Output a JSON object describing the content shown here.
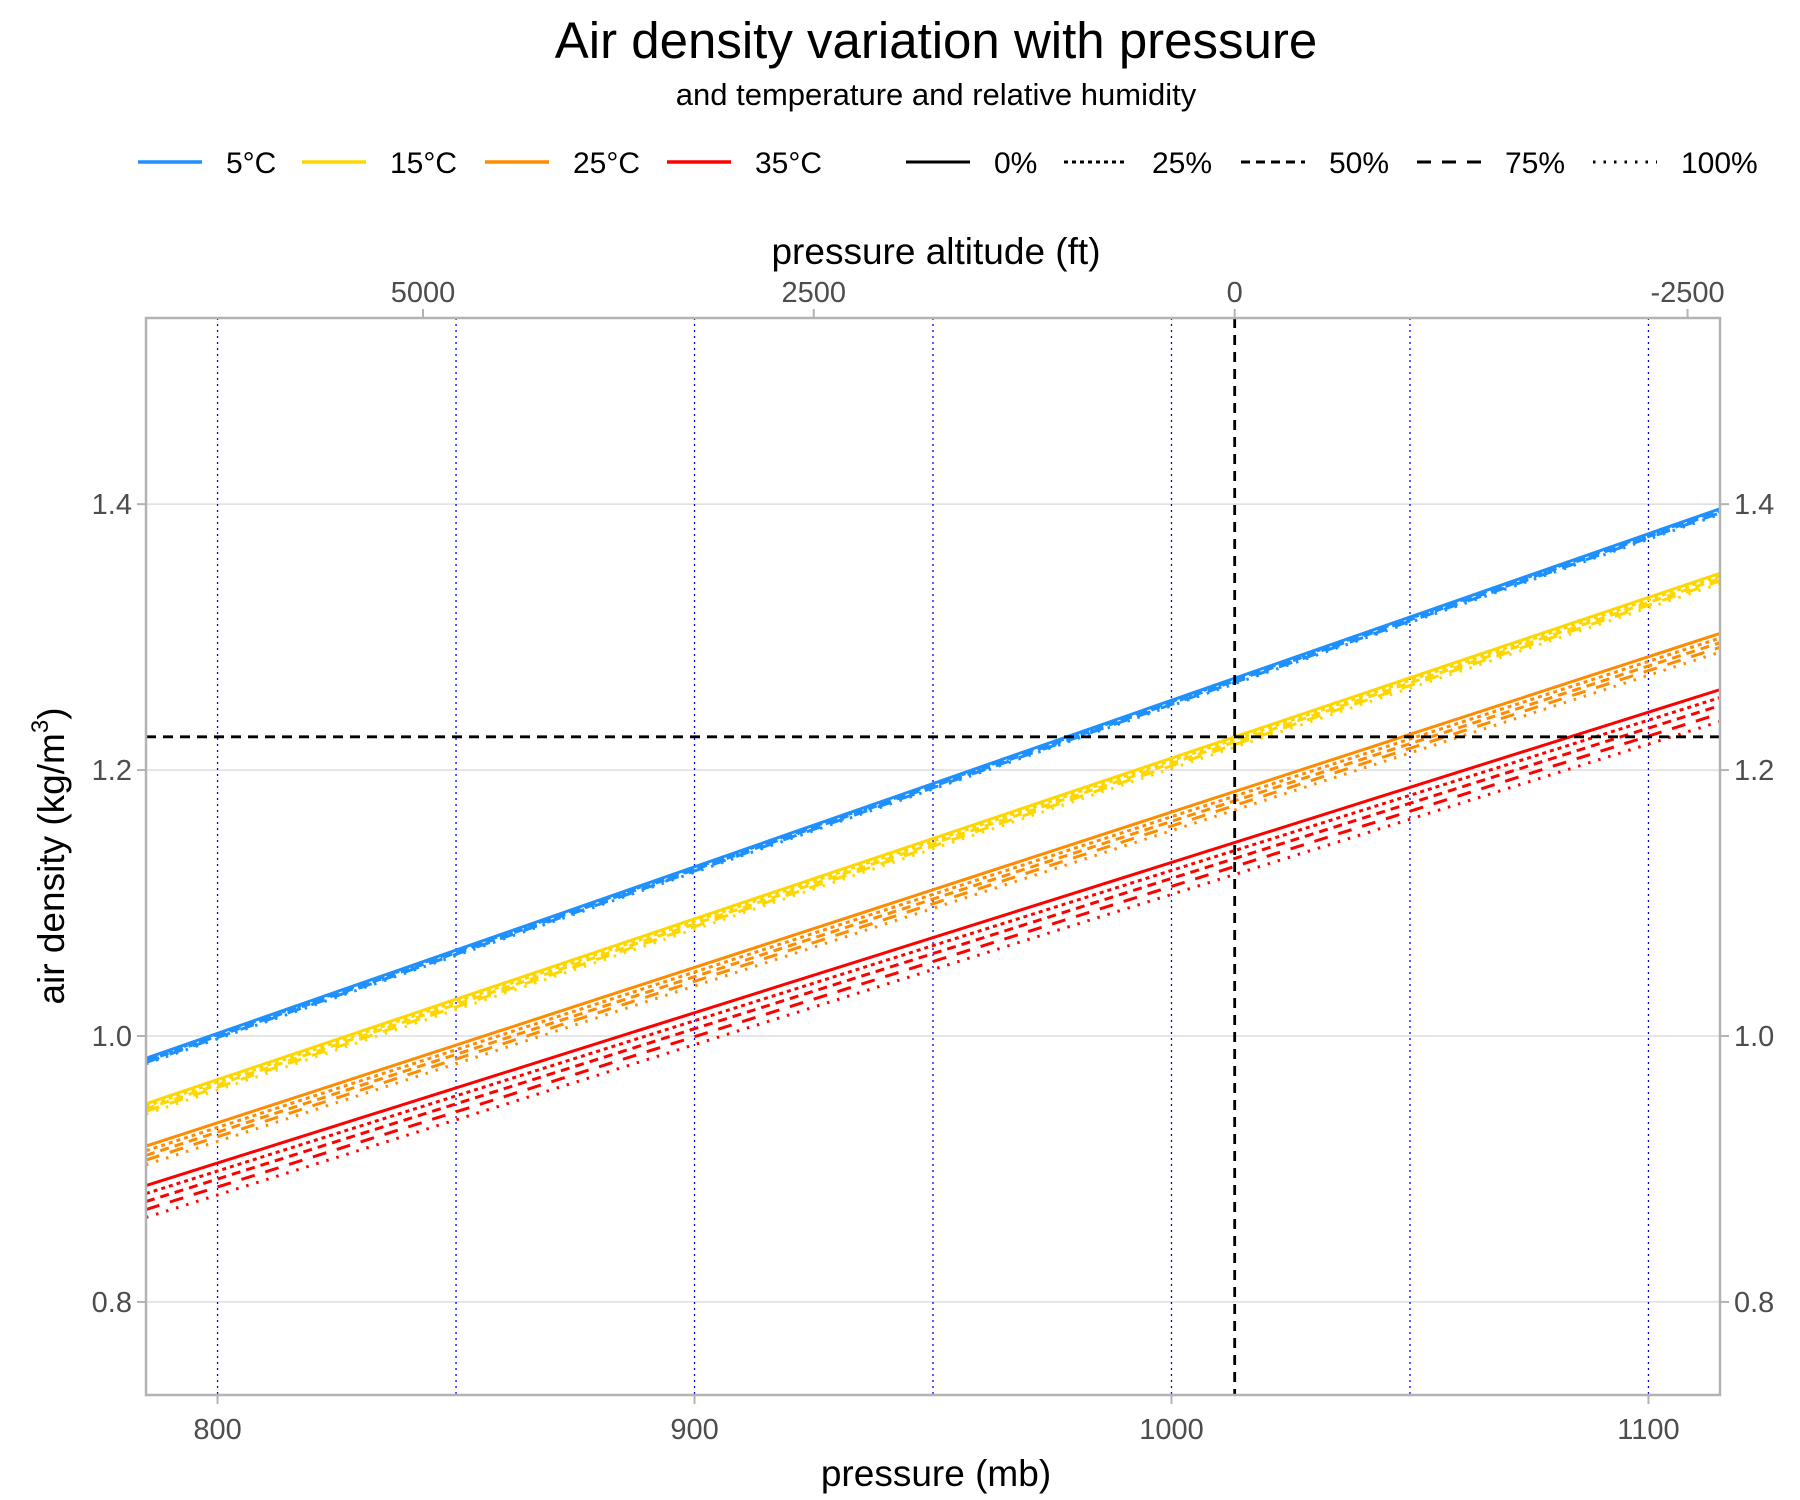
{
  "chart_data": {
    "type": "line",
    "title": "Air density variation with pressure",
    "subtitle": "and temperature and relative humidity",
    "xlabel": "pressure (mb)",
    "ylabel": "air density  (kg/m",
    "ylabel_sup": "3",
    "ylabel_end": ")",
    "x2label": "pressure altitude (ft)",
    "xlim": [
      785,
      1115
    ],
    "ylim": [
      0.73,
      1.54
    ],
    "x_ticks": [
      800,
      900,
      1000,
      1100
    ],
    "x_gridlines": [
      800,
      850,
      900,
      950,
      1000,
      1050,
      1100
    ],
    "y_ticks": [
      0.8,
      1.0,
      1.2,
      1.4
    ],
    "y_tick_labels": [
      "0.8",
      "1.0",
      "1.2",
      "1.4"
    ],
    "x2_ticks_ft": [
      5000,
      2500,
      0,
      -2500
    ],
    "grid": true,
    "legend_position": "top",
    "reference_lines": {
      "vertical_x": 1013.25,
      "horizontal_y": 1.225,
      "color": "#000000"
    },
    "temperature_legend": [
      {
        "name": "5°C",
        "color": "#1E90FF"
      },
      {
        "name": "15°C",
        "color": "#FFD700"
      },
      {
        "name": "25°C",
        "color": "#FF8C00"
      },
      {
        "name": "35°C",
        "color": "#FF0000"
      }
    ],
    "humidity_legend": [
      {
        "name": "0%",
        "linetype": "solid"
      },
      {
        "name": "25%",
        "linetype": "dotted"
      },
      {
        "name": "50%",
        "linetype": "dashed"
      },
      {
        "name": "75%",
        "linetype": "longdash"
      },
      {
        "name": "100%",
        "linetype": "sparse-dotted"
      }
    ],
    "x": [
      785,
      1115
    ],
    "series": [
      {
        "temperature": "5°C",
        "humidity": "0%",
        "values": [
          0.9832,
          1.3965
        ]
      },
      {
        "temperature": "5°C",
        "humidity": "25%",
        "values": [
          0.9822,
          1.3955
        ]
      },
      {
        "temperature": "5°C",
        "humidity": "50%",
        "values": [
          0.9811,
          1.3944
        ]
      },
      {
        "temperature": "5°C",
        "humidity": "75%",
        "values": [
          0.9801,
          1.3934
        ]
      },
      {
        "temperature": "5°C",
        "humidity": "100%",
        "values": [
          0.9791,
          1.3924
        ]
      },
      {
        "temperature": "15°C",
        "humidity": "0%",
        "values": [
          0.9491,
          1.348
        ]
      },
      {
        "temperature": "15°C",
        "humidity": "25%",
        "values": [
          0.9472,
          1.3461
        ]
      },
      {
        "temperature": "15°C",
        "humidity": "50%",
        "values": [
          0.9452,
          1.3441
        ]
      },
      {
        "temperature": "15°C",
        "humidity": "75%",
        "values": [
          0.9433,
          1.3422
        ]
      },
      {
        "temperature": "15°C",
        "humidity": "100%",
        "values": [
          0.9413,
          1.3402
        ]
      },
      {
        "temperature": "25°C",
        "humidity": "0%",
        "values": [
          0.9172,
          1.3028
        ]
      },
      {
        "temperature": "25°C",
        "humidity": "25%",
        "values": [
          0.9137,
          1.2993
        ]
      },
      {
        "temperature": "25°C",
        "humidity": "50%",
        "values": [
          0.9102,
          1.2958
        ]
      },
      {
        "temperature": "25°C",
        "humidity": "75%",
        "values": [
          0.9067,
          1.2923
        ]
      },
      {
        "temperature": "25°C",
        "humidity": "100%",
        "values": [
          0.9032,
          1.2888
        ]
      },
      {
        "temperature": "35°C",
        "humidity": "0%",
        "values": [
          0.8875,
          1.2605
        ]
      },
      {
        "temperature": "35°C",
        "humidity": "25%",
        "values": [
          0.8815,
          1.2545
        ]
      },
      {
        "temperature": "35°C",
        "humidity": "50%",
        "values": [
          0.8755,
          1.2485
        ]
      },
      {
        "temperature": "35°C",
        "humidity": "75%",
        "values": [
          0.8695,
          1.2425
        ]
      },
      {
        "temperature": "35°C",
        "humidity": "100%",
        "values": [
          0.8635,
          1.2365
        ]
      }
    ]
  }
}
